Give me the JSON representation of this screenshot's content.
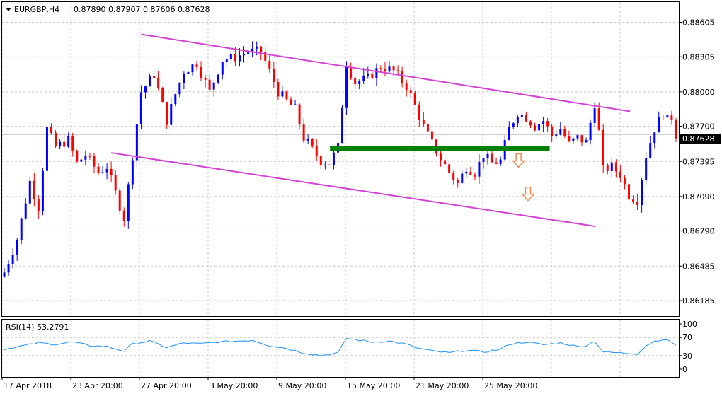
{
  "colors": {
    "background": "#ffffff",
    "frame": "#000000",
    "grid": "#c8c8c8",
    "bull": "#0000ff",
    "bear": "#ff0000",
    "channel": "#d442d4",
    "support": "#008000",
    "arrow": "#f08a52",
    "rsi": "#1e90ff",
    "price_tag_bg": "#000000",
    "price_tag_text": "#ffffff",
    "last_price_line": "#c8c8c8"
  },
  "header": {
    "symbol_timeframe": "EURGBP,H4",
    "ohlc": "0.87890 0.87907 0.87606 0.87628",
    "dropdown_icon": "triangle-down-icon"
  },
  "chart_data": [
    {
      "type": "candlestick",
      "title": "EURGBP,H4",
      "ylim": [
        0.8605,
        0.8878
      ],
      "y_ticks": [
        "0.88605",
        "0.88305",
        "0.88000",
        "0.87700",
        "0.87395",
        "0.87090",
        "0.86790",
        "0.86485",
        "0.86185"
      ],
      "x_ticks": [
        "17 Apr 2018",
        "23 Apr 20:00",
        "27 Apr 20:00",
        "3 May 20:00",
        "9 May 20:00",
        "15 May 20:00",
        "21 May 20:00",
        "25 May 20:00"
      ],
      "last_price": "0.87628",
      "grid": true,
      "close_path": [
        [
          0,
          0.8643
        ],
        [
          3,
          0.8672
        ],
        [
          6,
          0.8722
        ],
        [
          8,
          0.87
        ],
        [
          10,
          0.8768
        ],
        [
          12,
          0.8752
        ],
        [
          15,
          0.8758
        ],
        [
          17,
          0.8738
        ],
        [
          19,
          0.8745
        ],
        [
          22,
          0.873
        ],
        [
          24,
          0.8735
        ],
        [
          26,
          0.8712
        ],
        [
          28,
          0.869
        ],
        [
          30,
          0.8745
        ],
        [
          32,
          0.88
        ],
        [
          35,
          0.8815
        ],
        [
          38,
          0.8775
        ],
        [
          40,
          0.8798
        ],
        [
          42,
          0.8818
        ],
        [
          45,
          0.8825
        ],
        [
          48,
          0.88
        ],
        [
          51,
          0.8828
        ],
        [
          54,
          0.883
        ],
        [
          57,
          0.8835
        ],
        [
          60,
          0.8835
        ],
        [
          62,
          0.8818
        ],
        [
          64,
          0.88
        ],
        [
          66,
          0.8792
        ],
        [
          68,
          0.8785
        ],
        [
          70,
          0.876
        ],
        [
          72,
          0.875
        ],
        [
          74,
          0.874
        ],
        [
          76,
          0.8738
        ],
        [
          78,
          0.8752
        ],
        [
          80,
          0.8825
        ],
        [
          82,
          0.8808
        ],
        [
          85,
          0.8812
        ],
        [
          88,
          0.8822
        ],
        [
          91,
          0.8818
        ],
        [
          94,
          0.8805
        ],
        [
          96,
          0.8788
        ],
        [
          98,
          0.877
        ],
        [
          100,
          0.8755
        ],
        [
          102,
          0.8742
        ],
        [
          104,
          0.873
        ],
        [
          106,
          0.872
        ],
        [
          108,
          0.8735
        ],
        [
          110,
          0.873
        ],
        [
          112,
          0.8745
        ],
        [
          114,
          0.8738
        ],
        [
          116,
          0.874
        ],
        [
          118,
          0.8768
        ],
        [
          120,
          0.8782
        ],
        [
          122,
          0.8778
        ],
        [
          124,
          0.877
        ],
        [
          126,
          0.8775
        ],
        [
          128,
          0.8762
        ],
        [
          130,
          0.8768
        ],
        [
          132,
          0.8755
        ],
        [
          134,
          0.876
        ],
        [
          136,
          0.8756
        ],
        [
          138,
          0.879
        ],
        [
          139,
          0.8765
        ],
        [
          140,
          0.8732
        ],
        [
          142,
          0.8735
        ],
        [
          144,
          0.8728
        ],
        [
          146,
          0.871
        ],
        [
          148,
          0.8706
        ],
        [
          150,
          0.8745
        ],
        [
          152,
          0.8768
        ],
        [
          154,
          0.8782
        ],
        [
          155,
          0.8775
        ],
        [
          156,
          0.8778
        ],
        [
          157,
          0.8763
        ]
      ],
      "channel_upper": [
        [
          0.2055,
          0.885
        ],
        [
          0.929,
          0.8783
        ]
      ],
      "channel_lower": [
        [
          0.1614,
          0.8747
        ],
        [
          0.878,
          0.8683
        ]
      ],
      "support_level": {
        "x_range": [
          0.485,
          0.81
        ],
        "y": 0.87505
      },
      "arrows": [
        {
          "icon": "arrow-down-icon",
          "x": 0.764,
          "y": 0.874
        },
        {
          "icon": "arrow-down-icon",
          "x": 0.778,
          "y": 0.8711
        }
      ]
    },
    {
      "type": "line",
      "title": "RSI(14) 53.2791",
      "ylim": [
        0,
        100
      ],
      "y_ticks": [
        "100",
        "70",
        "30",
        "0"
      ],
      "levels": [
        30,
        70
      ],
      "path": [
        [
          0,
          44
        ],
        [
          8,
          58
        ],
        [
          12,
          55
        ],
        [
          16,
          60
        ],
        [
          20,
          52
        ],
        [
          24,
          50
        ],
        [
          28,
          40
        ],
        [
          30,
          56
        ],
        [
          34,
          62
        ],
        [
          38,
          48
        ],
        [
          42,
          58
        ],
        [
          46,
          56
        ],
        [
          50,
          60
        ],
        [
          54,
          62
        ],
        [
          58,
          64
        ],
        [
          62,
          52
        ],
        [
          66,
          46
        ],
        [
          70,
          36
        ],
        [
          74,
          30
        ],
        [
          78,
          36
        ],
        [
          80,
          68
        ],
        [
          86,
          60
        ],
        [
          90,
          62
        ],
        [
          94,
          55
        ],
        [
          96,
          48
        ],
        [
          100,
          40
        ],
        [
          104,
          36
        ],
        [
          108,
          42
        ],
        [
          112,
          38
        ],
        [
          116,
          44
        ],
        [
          118,
          55
        ],
        [
          122,
          60
        ],
        [
          126,
          54
        ],
        [
          130,
          58
        ],
        [
          134,
          50
        ],
        [
          136,
          52
        ],
        [
          138,
          62
        ],
        [
          140,
          38
        ],
        [
          144,
          36
        ],
        [
          148,
          34
        ],
        [
          150,
          52
        ],
        [
          152,
          62
        ],
        [
          154,
          66
        ],
        [
          156,
          60
        ],
        [
          157,
          53
        ]
      ]
    }
  ]
}
